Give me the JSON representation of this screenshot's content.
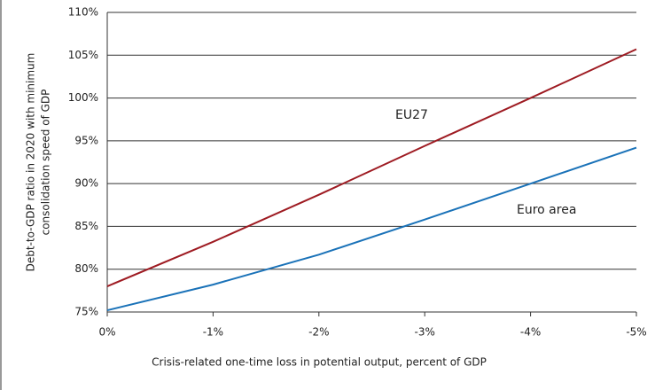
{
  "chart_data": {
    "type": "line",
    "xlabel": "Crisis-related one-time loss in potential output, percent of GDP",
    "ylabel": [
      "Debt-to-GDP ratio in 2020 with minimum",
      "consolidation speed of GDP"
    ],
    "x": [
      0,
      -1,
      -2,
      -3,
      -4,
      -5
    ],
    "series": [
      {
        "name": "EU27",
        "color": "#9e1b22",
        "values": [
          78,
          83.2,
          88.7,
          94.4,
          100,
          105.7
        ]
      },
      {
        "name": "Euro area",
        "color": "#1a72b8",
        "values": [
          75.2,
          78.2,
          81.7,
          85.8,
          90,
          94.2
        ]
      }
    ],
    "xlim": [
      0,
      -5
    ],
    "xticks": [
      {
        "value": 0,
        "label": "0%"
      },
      {
        "value": -1,
        "label": "-1%"
      },
      {
        "value": -2,
        "label": "-2%"
      },
      {
        "value": -3,
        "label": "-3%"
      },
      {
        "value": -4,
        "label": "-4%"
      },
      {
        "value": -5,
        "label": "-5%"
      }
    ],
    "ylim": [
      75,
      110
    ],
    "yticks": [
      {
        "value": 75,
        "label": "75%"
      },
      {
        "value": 80,
        "label": "80%"
      },
      {
        "value": 85,
        "label": "85%"
      },
      {
        "value": 90,
        "label": "90%"
      },
      {
        "value": 95,
        "label": "95%"
      },
      {
        "value": 100,
        "label": "100%"
      },
      {
        "value": 105,
        "label": "105%"
      },
      {
        "value": 110,
        "label": "110%"
      }
    ],
    "grid": true
  }
}
